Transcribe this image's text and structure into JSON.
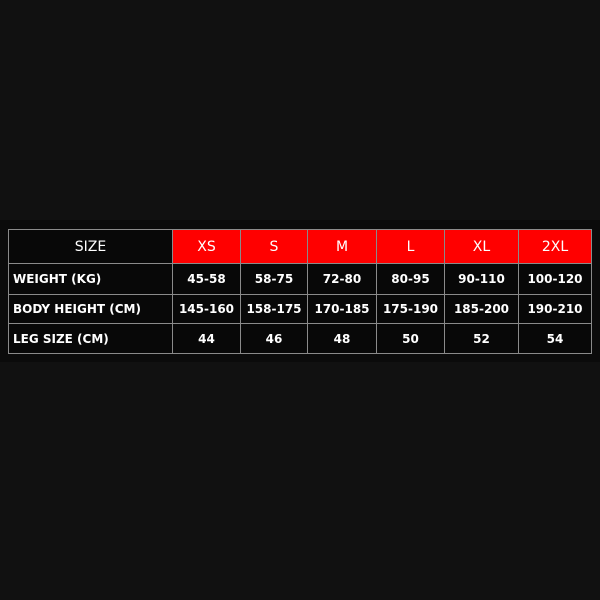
{
  "table": {
    "colors": {
      "header_accent": "#ff0000",
      "background": "#0b0b0b",
      "border": "#8a8a8a",
      "text": "#ffffff"
    },
    "corner_label": "SIZE",
    "sizes": [
      "XS",
      "S",
      "M",
      "L",
      "XL",
      "2XL"
    ],
    "rows": [
      {
        "label": "WEIGHT (KG)",
        "values": [
          "45-58",
          "58-75",
          "72-80",
          "80-95",
          "90-110",
          "100-120"
        ]
      },
      {
        "label": "BODY HEIGHT (CM)",
        "values": [
          "145-160",
          "158-175",
          "170-185",
          "175-190",
          "185-200",
          "190-210"
        ]
      },
      {
        "label": "LEG SIZE (CM)",
        "values": [
          "44",
          "46",
          "48",
          "50",
          "52",
          "54"
        ]
      }
    ]
  }
}
